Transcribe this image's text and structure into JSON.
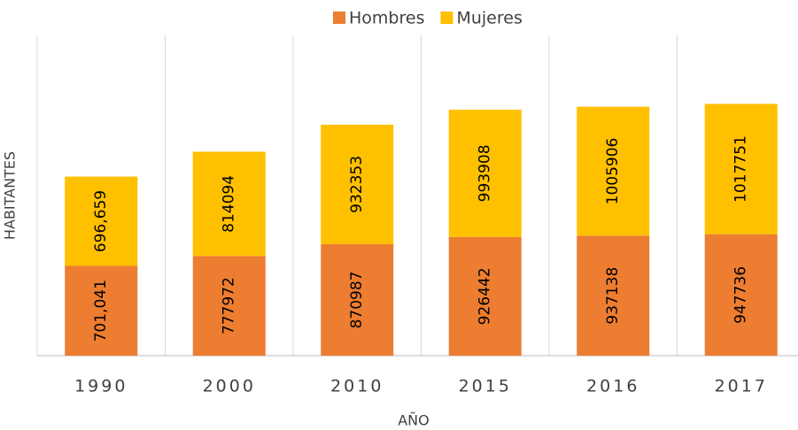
{
  "chart_data": {
    "type": "bar",
    "stacked": true,
    "x_label": "AÑO",
    "y_label": "HABITANTES",
    "categories": [
      "1990",
      "2000",
      "2010",
      "2015",
      "2016",
      "2017"
    ],
    "series": [
      {
        "name": "Hombres",
        "color": "#ed7d31",
        "values": [
          701041,
          777972,
          870987,
          926442,
          937138,
          947736
        ],
        "value_labels": [
          "701,041",
          "777972",
          "870987",
          "926442",
          "937138",
          "947736"
        ]
      },
      {
        "name": "Mujeres",
        "color": "#ffc000",
        "values": [
          696659,
          814094,
          932353,
          993908,
          1005906,
          1017751
        ],
        "value_labels": [
          "696,659",
          "814094",
          "932353",
          "993908",
          "1005906",
          "1017751"
        ]
      }
    ],
    "ylim": [
      0,
      2500000
    ],
    "grid": "vertical",
    "legend": "top"
  }
}
